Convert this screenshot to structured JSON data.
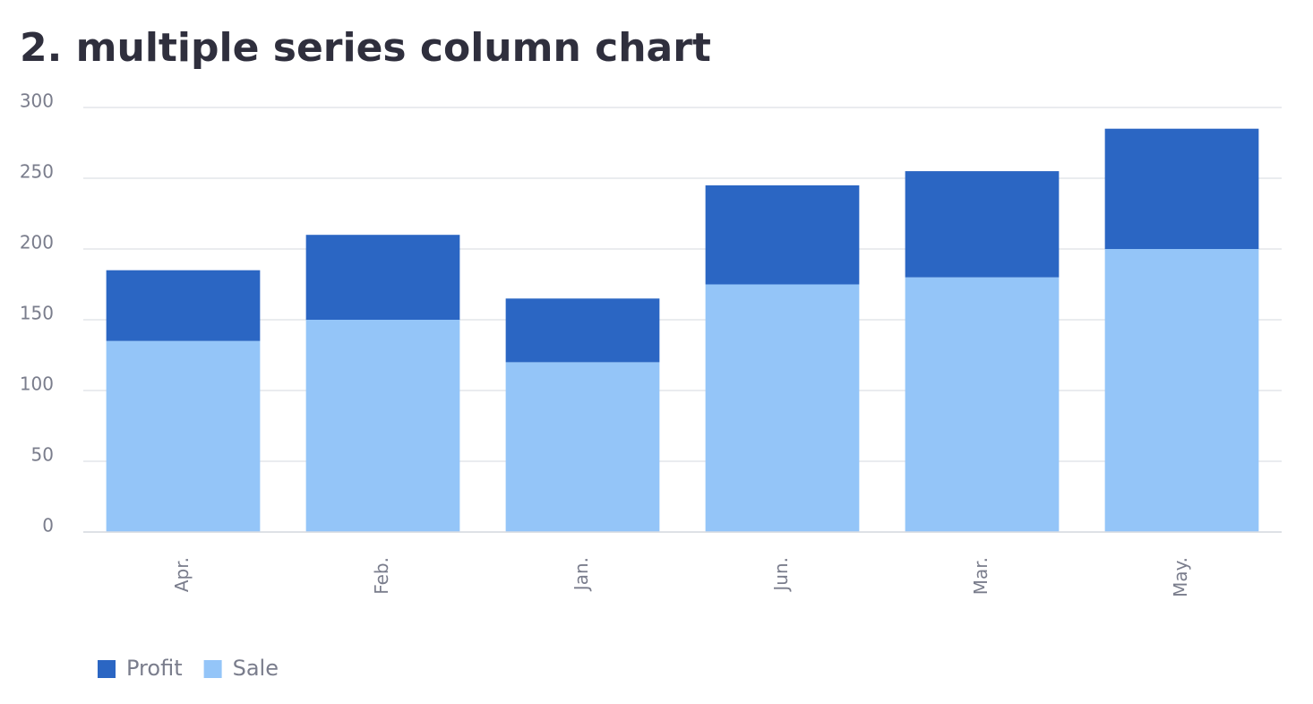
{
  "chart_data": {
    "type": "bar",
    "stacked": true,
    "title": "2. multiple series column chart",
    "categories": [
      "Apr.",
      "Feb.",
      "Jan.",
      "Jun.",
      "Mar.",
      "May."
    ],
    "series": [
      {
        "name": "Profit",
        "color": "#2b66c3",
        "values": [
          50,
          60,
          45,
          70,
          75,
          85
        ]
      },
      {
        "name": "Sale",
        "color": "#94c5f8",
        "values": [
          135,
          150,
          120,
          175,
          180,
          200
        ]
      }
    ],
    "ylim": [
      0,
      300
    ],
    "yticks": [
      0,
      50,
      100,
      150,
      200,
      250,
      300
    ],
    "grid": true,
    "legend": "bottom-left"
  }
}
